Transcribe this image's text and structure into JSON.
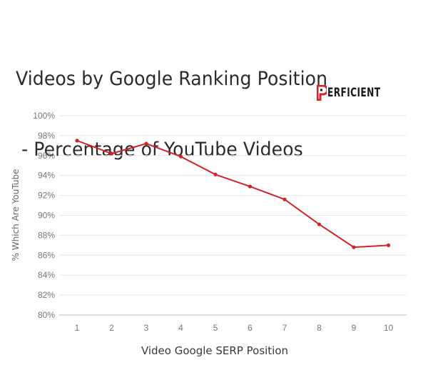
{
  "title": {
    "line1": "Videos by Google Ranking Position",
    "line2": " - Percentage of YouTube Videos"
  },
  "logo": {
    "text": "ERFICIENT",
    "full_text": "PERFICIENT",
    "brand_color": "#d2232a"
  },
  "chart_data": {
    "type": "line",
    "title": "Videos by Google Ranking Position - Percentage of YouTube Videos",
    "xlabel": "Video Google SERP Position",
    "ylabel": "% Which Are YouTube",
    "categories": [
      "1",
      "2",
      "3",
      "4",
      "5",
      "6",
      "7",
      "8",
      "9",
      "10"
    ],
    "series": [
      {
        "name": "% Which Are YouTube",
        "color": "#d2232a",
        "values": [
          97.5,
          96.2,
          97.2,
          95.9,
          94.1,
          92.9,
          91.6,
          89.1,
          86.8,
          87.0
        ]
      }
    ],
    "ylim": [
      80,
      100
    ],
    "y_ticks": [
      "80%",
      "82%",
      "84%",
      "86%",
      "88%",
      "90%",
      "92%",
      "94%",
      "96%",
      "98%",
      "100%"
    ],
    "grid": true,
    "legend": "none"
  },
  "colors": {
    "line": "#d2232a",
    "grid": "#e6e6e6",
    "axis": "#b8b8b8",
    "tick_text": "#777777"
  }
}
